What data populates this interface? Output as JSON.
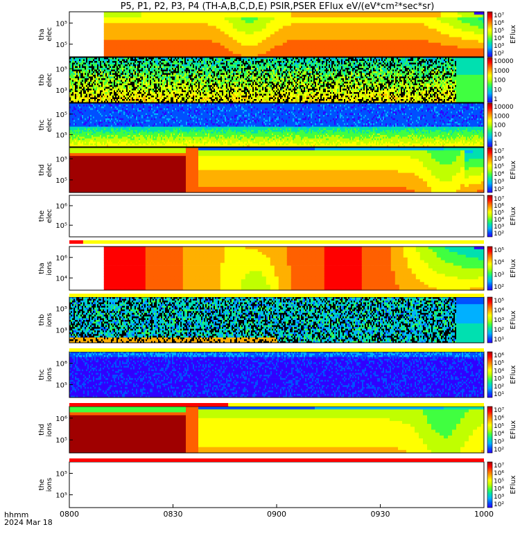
{
  "title": "P5, P1, P2, P3, P4 (TH-A,B,C,D,E) PSIR,PSER EFlux eV/(eV*cm²*sec*sr)",
  "date_labels": {
    "line1": "hhmm",
    "line2": "2024 Mar 18"
  },
  "colorbar_label": "EFlux",
  "colors": {
    "red": "#ff0000",
    "yellow": "#ffff00",
    "black": "#000000",
    "spectrum": [
      "#6a00a8",
      "#3000ff",
      "#0050ff",
      "#00b0ff",
      "#00e0b0",
      "#40ff40",
      "#c0ff00",
      "#ffff00",
      "#ffb000",
      "#ff6000",
      "#ff0000",
      "#a00000"
    ]
  },
  "chart_data": {
    "type": "heatmap",
    "x_tick_labels": [
      "0800",
      "0830",
      "0900",
      "0930",
      "1000"
    ],
    "x_range": [
      "0800",
      "1000"
    ],
    "panels": [
      {
        "name": "tha-elec",
        "y_line1": "tha",
        "y_line2": "elec",
        "y_tick_labels": [
          "10⁵",
          "10⁵"
        ],
        "cbar_ticks": [
          "10⁷",
          "10⁶",
          "10⁵",
          "10⁴",
          "10³",
          "10²"
        ],
        "cbar_title": "EFlux",
        "pattern": "smooth",
        "data_start": "0810"
      },
      {
        "name": "thb-elec",
        "y_line1": "thb",
        "y_line2": "elec",
        "y_tick_labels": [
          "10⁵",
          "10³"
        ],
        "cbar_ticks": [
          "10000",
          "1000",
          "100",
          "10",
          "1"
        ],
        "cbar_title": "",
        "pattern": "noisy",
        "data_start": "0800"
      },
      {
        "name": "thc-elec",
        "y_line1": "thc",
        "y_line2": "elec",
        "y_tick_labels": [
          "10⁵",
          "10⁵"
        ],
        "cbar_ticks": [
          "10000",
          "1000",
          "100",
          "10",
          "1"
        ],
        "cbar_title": "",
        "pattern": "bands",
        "data_start": "0800"
      },
      {
        "name": "thd-elec",
        "y_line1": "thd",
        "y_line2": "elec",
        "y_tick_labels": [
          "10⁵",
          "10⁵"
        ],
        "cbar_ticks": [
          "10⁷",
          "10⁶",
          "10⁵",
          "10⁴",
          "10³",
          "10²"
        ],
        "cbar_title": "EFlux",
        "pattern": "thd",
        "data_start": "0800"
      },
      {
        "name": "the-elec",
        "y_line1": "the",
        "y_line2": "elec",
        "y_tick_labels": [
          "10⁶",
          "10⁵"
        ],
        "cbar_ticks": [
          "10⁷",
          "10⁶",
          "10⁵",
          "10⁴",
          "10³",
          "10²"
        ],
        "cbar_title": "EFlux",
        "pattern": "empty",
        "data_start": ""
      },
      {
        "name": "tha-ions",
        "y_line1": "tha",
        "y_line2": "ions",
        "y_tick_labels": [
          "10⁶",
          "10⁴"
        ],
        "cbar_ticks": [
          "10⁵",
          "10⁴",
          "10³",
          "10²"
        ],
        "cbar_title": "EFlux",
        "pattern": "smooth-ions",
        "data_start": "0810"
      },
      {
        "name": "thb-ions",
        "y_line1": "thb",
        "y_line2": "ions",
        "y_tick_labels": [
          "10⁵",
          "10³"
        ],
        "cbar_ticks": [
          "10⁵",
          "10⁴",
          "10³",
          "10²",
          "10¹"
        ],
        "cbar_title": "EFlux",
        "pattern": "noisy-ions",
        "data_start": "0800"
      },
      {
        "name": "thc-ions",
        "y_line1": "thc",
        "y_line2": "ions",
        "y_tick_labels": [
          "10⁶",
          "10⁵"
        ],
        "cbar_ticks": [
          "10⁶",
          "10⁵",
          "10⁴",
          "10³",
          "10²",
          "10¹"
        ],
        "cbar_title": "EFlux",
        "pattern": "blue-ions",
        "data_start": "0800"
      },
      {
        "name": "thd-ions",
        "y_line1": "thd",
        "y_line2": "ions",
        "y_tick_labels": [
          "10⁶",
          "10⁵"
        ],
        "cbar_ticks": [
          "10⁷",
          "10⁶",
          "10⁵",
          "10⁴",
          "10³",
          "10²"
        ],
        "cbar_title": "EFlux",
        "pattern": "thd-ions",
        "data_start": "0800"
      },
      {
        "name": "the-ions",
        "y_line1": "the",
        "y_line2": "ions",
        "y_tick_labels": [
          "10⁵",
          "10⁵"
        ],
        "cbar_ticks": [
          "10⁷",
          "10⁶",
          "10⁵",
          "10⁴",
          "10³",
          "10²"
        ],
        "cbar_title": "EFlux",
        "pattern": "empty",
        "data_start": ""
      }
    ],
    "status_bars": [
      {
        "name": "status-bar-1",
        "segments": [
          {
            "color": "red",
            "from": "0800",
            "to": "0804"
          },
          {
            "color": "yellow",
            "from": "0804",
            "to": "1000"
          }
        ]
      },
      {
        "name": "status-bar-2",
        "segments": [
          {
            "color": "yellow",
            "from": "0800",
            "to": "1000"
          }
        ]
      },
      {
        "name": "status-bar-3",
        "segments": [
          {
            "color": "yellow",
            "from": "0800",
            "to": "1000"
          }
        ]
      },
      {
        "name": "status-bar-4",
        "segments": [
          {
            "color": "red",
            "from": "0800",
            "to": "0846"
          },
          {
            "color": "yellow",
            "from": "0846",
            "to": "1000"
          }
        ]
      },
      {
        "name": "status-bar-5",
        "segments": [
          {
            "color": "red",
            "from": "0800",
            "to": "1000"
          }
        ]
      }
    ]
  }
}
